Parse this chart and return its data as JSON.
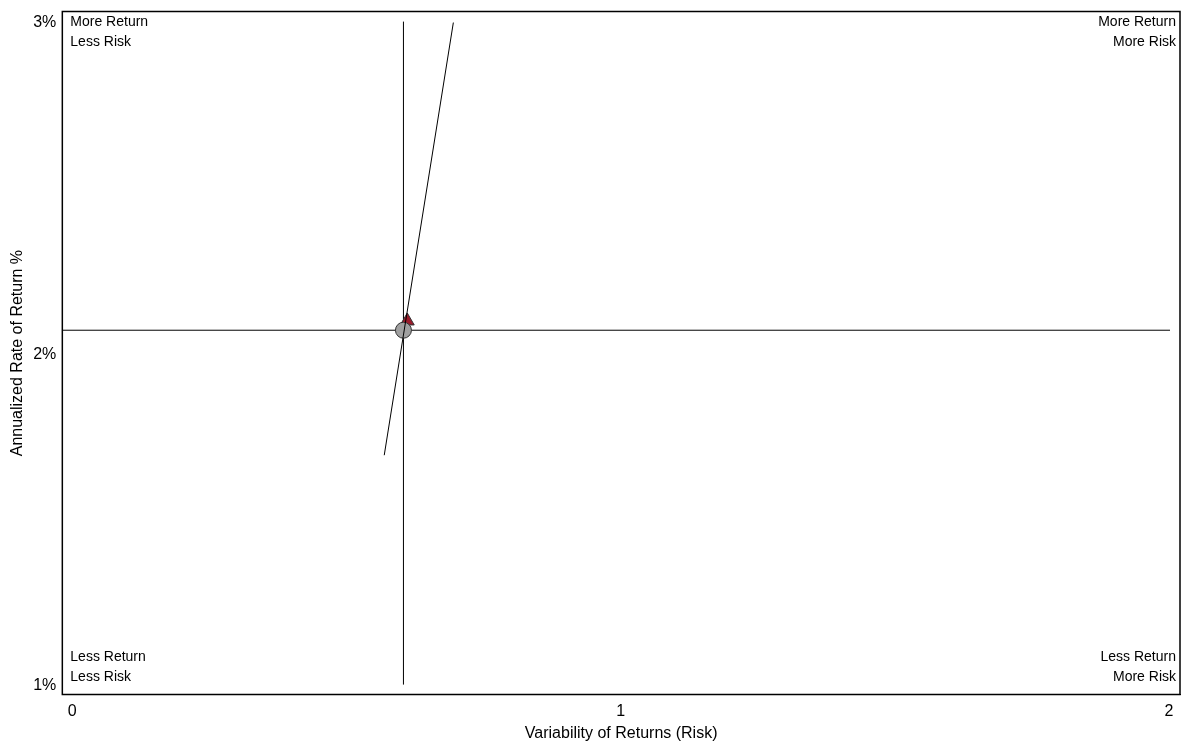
{
  "chart_data": {
    "type": "scatter",
    "xlabel": "Variability of Returns (Risk)",
    "ylabel": "Annualized Rate of Return %",
    "xlim": [
      -0.018,
      2.02
    ],
    "xticks": [
      0,
      1,
      2
    ],
    "ylim": [
      0.973,
      3.033
    ],
    "yticks": [
      {
        "value": 1,
        "label": "1%"
      },
      {
        "value": 2,
        "label": "2%"
      },
      {
        "value": 3,
        "label": "3%"
      }
    ],
    "grid": false,
    "legend": false,
    "series": [
      {
        "type": "line",
        "color": "#000000",
        "x": [
          0.569,
          0.695
        ],
        "values": [
          1.695,
          3.0
        ],
        "marker": "none",
        "line_style": "solid"
      },
      {
        "type": "scatter",
        "color": "#a0a0a0",
        "x": [
          0.604
        ],
        "values": [
          2.072
        ],
        "marker": "circle"
      },
      {
        "type": "scatter",
        "color": "#9b1b2b",
        "x": [
          0.611
        ],
        "values": [
          2.1
        ],
        "marker": "triangle"
      }
    ],
    "ref_lines": [
      {
        "axis": "x",
        "value": 0.604,
        "color": "#000000"
      },
      {
        "axis": "y",
        "value": 2.072,
        "color": "#000000"
      }
    ],
    "annotations": [
      "More Return\nLess Risk",
      "More Return\nMore Risk",
      "Less Return\nLess Risk",
      "Less Return\nMore Risk"
    ]
  }
}
